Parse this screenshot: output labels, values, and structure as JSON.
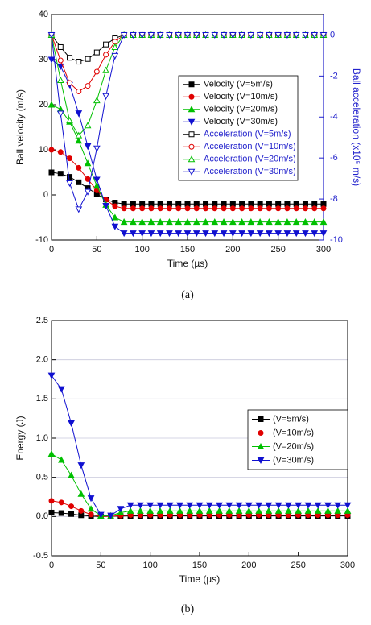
{
  "chart_data": [
    {
      "type": "line",
      "x_label": "Time (µs)",
      "y_label": "Ball velocity (m/s)",
      "y2_label": "Ball acceleration (x10⁵ m/s)",
      "caption": "(a)",
      "xlim": [
        0,
        300
      ],
      "xticks": [
        0,
        50,
        100,
        150,
        200,
        250,
        300
      ],
      "ylim": [
        -10,
        40
      ],
      "yticks": [
        -10,
        0,
        10,
        20,
        30,
        40
      ],
      "y2lim": [
        -10,
        1
      ],
      "y2ticks": [
        0,
        -2,
        -4,
        -6,
        -8,
        -10
      ],
      "y2color": "#2222cc",
      "grid": false,
      "x": [
        0,
        10,
        20,
        30,
        40,
        50,
        60,
        70,
        80,
        90,
        100,
        110,
        120,
        130,
        140,
        150,
        160,
        170,
        180,
        190,
        200,
        210,
        220,
        230,
        240,
        250,
        260,
        270,
        280,
        290,
        300
      ],
      "series": [
        {
          "name": "Velocity (V=5m/s)",
          "color": "#000000",
          "marker": "square",
          "filled": true,
          "values": [
            5,
            4.7,
            4,
            2.8,
            1.5,
            0.2,
            -1,
            -1.7,
            -2,
            -2,
            -2,
            -2,
            -2,
            -2,
            -2,
            -2,
            -2,
            -2,
            -2,
            -2,
            -2,
            -2,
            -2,
            -2,
            -2,
            -2,
            -2,
            -2,
            -2,
            -2,
            -2
          ]
        },
        {
          "name": "Velocity (V=10m/s)",
          "color": "#e00000",
          "marker": "circle",
          "filled": true,
          "values": [
            10,
            9.5,
            8.1,
            6,
            3.5,
            1,
            -1.1,
            -2.5,
            -3,
            -3,
            -3,
            -3,
            -3,
            -3,
            -3,
            -3,
            -3,
            -3,
            -3,
            -3,
            -3,
            -3,
            -3,
            -3,
            -3,
            -3,
            -3,
            -3,
            -3,
            -3,
            -3
          ]
        },
        {
          "name": "Velocity (V=20m/s)",
          "color": "#00c000",
          "marker": "triangle-up",
          "filled": true,
          "values": [
            20,
            19,
            16.2,
            12,
            7,
            2,
            -2.2,
            -5,
            -6,
            -6,
            -6,
            -6,
            -6,
            -6,
            -6,
            -6,
            -6,
            -6,
            -6,
            -6,
            -6,
            -6,
            -6,
            -6,
            -6,
            -6,
            -6,
            -6,
            -6,
            -6,
            -6
          ]
        },
        {
          "name": "Velocity (V=30m/s)",
          "color": "#1010d0",
          "marker": "triangle-down",
          "filled": true,
          "values": [
            30,
            28.5,
            24.4,
            18.1,
            10.8,
            3.4,
            -2.4,
            -7,
            -8.5,
            -8.5,
            -8.5,
            -8.5,
            -8.5,
            -8.5,
            -8.5,
            -8.5,
            -8.5,
            -8.5,
            -8.5,
            -8.5,
            -8.5,
            -8.5,
            -8.5,
            -8.5,
            -8.5,
            -8.5,
            -8.5,
            -8.5,
            -8.5,
            -8.5,
            -8.5
          ]
        },
        {
          "name": "Acceleration (V=5m/s)",
          "color": "#000000",
          "marker": "square",
          "filled": false,
          "axis": "y2",
          "values": [
            0,
            -0.59,
            -1.11,
            -1.3,
            -1.17,
            -0.85,
            -0.46,
            -0.16,
            0,
            0,
            0,
            0,
            0,
            0,
            0,
            0,
            0,
            0,
            0,
            0,
            0,
            0,
            0,
            0,
            0,
            0,
            0,
            0,
            0,
            0,
            0
          ]
        },
        {
          "name": "Acceleration (V=10m/s)",
          "color": "#e00000",
          "marker": "circle",
          "filled": false,
          "axis": "y2",
          "values": [
            0,
            -1.24,
            -2.34,
            -2.75,
            -2.48,
            -1.79,
            -0.96,
            -0.33,
            0,
            0,
            0,
            0,
            0,
            0,
            0,
            0,
            0,
            0,
            0,
            0,
            0,
            0,
            0,
            0,
            0,
            0,
            0,
            0,
            0,
            0,
            0
          ]
        },
        {
          "name": "Acceleration (V=20m/s)",
          "color": "#00c000",
          "marker": "triangle-up",
          "filled": false,
          "axis": "y2",
          "values": [
            0,
            -2.2,
            -4.17,
            -4.9,
            -4.41,
            -3.19,
            -1.72,
            -0.59,
            0,
            0,
            0,
            0,
            0,
            0,
            0,
            0,
            0,
            0,
            0,
            0,
            0,
            0,
            0,
            0,
            0,
            0,
            0,
            0,
            0,
            0,
            0
          ]
        },
        {
          "name": "Acceleration (V=30m/s)",
          "color": "#1010d0",
          "marker": "triangle-down",
          "filled": false,
          "axis": "y2",
          "values": [
            0,
            -3.83,
            -7.23,
            -8.5,
            -7.65,
            -5.53,
            -2.98,
            -1.02,
            0,
            0,
            0,
            0,
            0,
            0,
            0,
            0,
            0,
            0,
            0,
            0,
            0,
            0,
            0,
            0,
            0,
            0,
            0,
            0,
            0,
            0,
            0
          ]
        }
      ]
    },
    {
      "type": "line",
      "x_label": "Time (µs)",
      "y_label": "Energy (J)",
      "caption": "(b)",
      "xlim": [
        0,
        300
      ],
      "xticks": [
        0,
        50,
        100,
        150,
        200,
        250,
        300
      ],
      "ylim": [
        -0.5,
        2.5
      ],
      "yticks": [
        -0.5,
        {
          "value": 0,
          "label": "0.0"
        },
        0.5,
        {
          "value": 1,
          "label": "1.0"
        },
        1.5,
        {
          "value": 2,
          "label": "2.0"
        },
        2.5
      ],
      "grid": true,
      "x": [
        0,
        10,
        20,
        30,
        40,
        50,
        60,
        70,
        80,
        90,
        100,
        110,
        120,
        130,
        140,
        150,
        160,
        170,
        180,
        190,
        200,
        210,
        220,
        230,
        240,
        250,
        260,
        270,
        280,
        290,
        300
      ],
      "series": [
        {
          "name": "(V=5m/s)",
          "color": "#000000",
          "marker": "square",
          "filled": true,
          "values": [
            0.05,
            0.044,
            0.032,
            0.016,
            0.005,
            0,
            0.002,
            0.006,
            0.008,
            0.008,
            0.008,
            0.008,
            0.008,
            0.008,
            0.008,
            0.008,
            0.008,
            0.008,
            0.008,
            0.008,
            0.008,
            0.008,
            0.008,
            0.008,
            0.008,
            0.008,
            0.008,
            0.008,
            0.008,
            0.008,
            0.008
          ]
        },
        {
          "name": "(V=10m/s)",
          "color": "#e00000",
          "marker": "circle",
          "filled": true,
          "values": [
            0.2,
            0.18,
            0.131,
            0.072,
            0.025,
            0.002,
            0.002,
            0.013,
            0.018,
            0.018,
            0.018,
            0.018,
            0.018,
            0.018,
            0.018,
            0.018,
            0.018,
            0.018,
            0.018,
            0.018,
            0.018,
            0.018,
            0.018,
            0.018,
            0.018,
            0.018,
            0.018,
            0.018,
            0.018,
            0.018,
            0.018
          ]
        },
        {
          "name": "(V=20m/s)",
          "color": "#00c000",
          "marker": "triangle-up",
          "filled": true,
          "values": [
            0.8,
            0.722,
            0.525,
            0.288,
            0.098,
            0.008,
            0.01,
            0.05,
            0.072,
            0.072,
            0.072,
            0.072,
            0.072,
            0.072,
            0.072,
            0.072,
            0.072,
            0.072,
            0.072,
            0.072,
            0.072,
            0.072,
            0.072,
            0.072,
            0.072,
            0.072,
            0.072,
            0.072,
            0.072,
            0.072,
            0.072
          ]
        },
        {
          "name": "(V=30m/s)",
          "color": "#1010d0",
          "marker": "triangle-down",
          "filled": true,
          "values": [
            1.8,
            1.625,
            1.19,
            0.655,
            0.233,
            0.023,
            0.012,
            0.098,
            0.145,
            0.145,
            0.145,
            0.145,
            0.145,
            0.145,
            0.145,
            0.145,
            0.145,
            0.145,
            0.145,
            0.145,
            0.145,
            0.145,
            0.145,
            0.145,
            0.145,
            0.145,
            0.145,
            0.145,
            0.145,
            0.145,
            0.145
          ]
        }
      ]
    }
  ]
}
